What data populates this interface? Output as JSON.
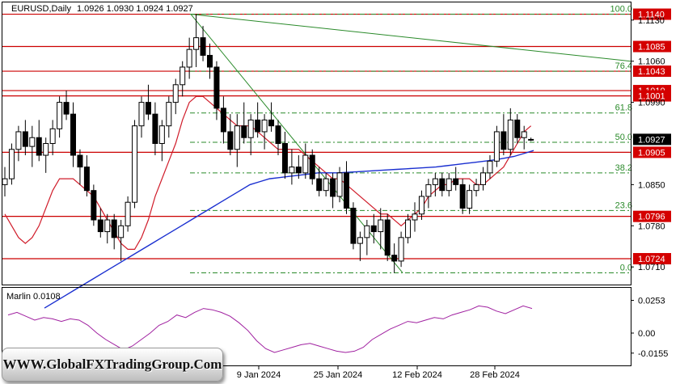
{
  "chart_data": [
    {
      "type": "candlestick",
      "symbol_label": "EURUSD,Daily",
      "ohlc_label": "1.0926 1.0930 1.0924 1.0927",
      "ylim": [
        1.068,
        1.116
      ],
      "y_ticks": [
        "1.1130",
        "1.1060",
        "1.0990",
        "1.0850",
        "1.0780",
        "1.0710"
      ],
      "x_ticks": [
        "9 Jan 2024",
        "25 Jan 2024",
        "12 Feb 2024",
        "28 Feb 2024"
      ],
      "current_price": "1.0927",
      "levels": [
        {
          "label": "1.1140",
          "value": 1.114
        },
        {
          "label": "1.1085",
          "value": 1.1085
        },
        {
          "label": "1.1043",
          "value": 1.1043
        },
        {
          "label": "1.1010",
          "value": 1.101
        },
        {
          "label": "1.1001",
          "value": 1.1001
        },
        {
          "label": "1.0905",
          "value": 1.0905
        },
        {
          "label": "1.0796",
          "value": 1.0796
        },
        {
          "label": "1.0724",
          "value": 1.0724
        }
      ],
      "fibonacci": [
        {
          "label": "100.0",
          "value": 1.114
        },
        {
          "label": "76.4",
          "value": 1.1043
        },
        {
          "label": "61.8",
          "value": 1.0972
        },
        {
          "label": "50.0",
          "value": 1.0922
        },
        {
          "label": "38.2",
          "value": 1.087
        },
        {
          "label": "23.6",
          "value": 1.0806
        },
        {
          "label": "0.0",
          "value": 1.07
        }
      ],
      "candles": [
        [
          1.085,
          1.088,
          1.083,
          1.086
        ],
        [
          1.086,
          1.092,
          1.085,
          1.091
        ],
        [
          1.091,
          1.095,
          1.089,
          1.094
        ],
        [
          1.094,
          1.096,
          1.09,
          1.0915
        ],
        [
          1.0915,
          1.095,
          1.088,
          1.093
        ],
        [
          1.093,
          1.096,
          1.089,
          1.09
        ],
        [
          1.09,
          1.093,
          1.087,
          1.092
        ],
        [
          1.092,
          1.096,
          1.09,
          1.0945
        ],
        [
          1.0945,
          1.1,
          1.093,
          1.099
        ],
        [
          1.099,
          1.101,
          1.096,
          1.097
        ],
        [
          1.097,
          1.099,
          1.088,
          1.09
        ],
        [
          1.09,
          1.091,
          1.085,
          1.088
        ],
        [
          1.088,
          1.09,
          1.083,
          1.084
        ],
        [
          1.084,
          1.085,
          1.078,
          1.079
        ],
        [
          1.079,
          1.081,
          1.076,
          1.077
        ],
        [
          1.077,
          1.08,
          1.075,
          1.079
        ],
        [
          1.079,
          1.08,
          1.074,
          1.076
        ],
        [
          1.076,
          1.079,
          1.072,
          1.078
        ],
        [
          1.078,
          1.083,
          1.077,
          1.082
        ],
        [
          1.082,
          1.096,
          1.081,
          1.095
        ],
        [
          1.095,
          1.1,
          1.093,
          1.099
        ],
        [
          1.099,
          1.102,
          1.096,
          1.097
        ],
        [
          1.097,
          1.099,
          1.09,
          1.092
        ],
        [
          1.092,
          1.096,
          1.089,
          1.095
        ],
        [
          1.095,
          1.1,
          1.093,
          1.099
        ],
        [
          1.099,
          1.103,
          1.097,
          1.102
        ],
        [
          1.102,
          1.106,
          1.1,
          1.105
        ],
        [
          1.105,
          1.11,
          1.103,
          1.108
        ],
        [
          1.108,
          1.114,
          1.105,
          1.11
        ],
        [
          1.11,
          1.112,
          1.106,
          1.107
        ],
        [
          1.107,
          1.109,
          1.103,
          1.105
        ],
        [
          1.105,
          1.106,
          1.096,
          1.098
        ],
        [
          1.098,
          1.1,
          1.092,
          1.094
        ],
        [
          1.094,
          1.097,
          1.09,
          1.091
        ],
        [
          1.091,
          1.097,
          1.088,
          1.095
        ],
        [
          1.095,
          1.099,
          1.092,
          1.093
        ],
        [
          1.093,
          1.097,
          1.09,
          1.096
        ],
        [
          1.096,
          1.099,
          1.093,
          1.094
        ],
        [
          1.094,
          1.097,
          1.091,
          1.096
        ],
        [
          1.096,
          1.099,
          1.094,
          1.095
        ],
        [
          1.095,
          1.096,
          1.09,
          1.092
        ],
        [
          1.092,
          1.094,
          1.086,
          1.087
        ],
        [
          1.087,
          1.091,
          1.085,
          1.088
        ],
        [
          1.088,
          1.09,
          1.086,
          1.087
        ],
        [
          1.087,
          1.092,
          1.086,
          1.09
        ],
        [
          1.09,
          1.091,
          1.085,
          1.086
        ],
        [
          1.086,
          1.088,
          1.083,
          1.084
        ],
        [
          1.084,
          1.087,
          1.083,
          1.086
        ],
        [
          1.086,
          1.087,
          1.081,
          1.083
        ],
        [
          1.083,
          1.088,
          1.082,
          1.087
        ],
        [
          1.087,
          1.089,
          1.08,
          1.081
        ],
        [
          1.081,
          1.082,
          1.074,
          1.075
        ],
        [
          1.075,
          1.077,
          1.072,
          1.076
        ],
        [
          1.076,
          1.079,
          1.073,
          1.078
        ],
        [
          1.078,
          1.08,
          1.075,
          1.077
        ],
        [
          1.077,
          1.081,
          1.074,
          1.079
        ],
        [
          1.079,
          1.08,
          1.072,
          1.073
        ],
        [
          1.073,
          1.075,
          1.07,
          1.072
        ],
        [
          1.072,
          1.077,
          1.071,
          1.076
        ],
        [
          1.076,
          1.08,
          1.075,
          1.079
        ],
        [
          1.079,
          1.082,
          1.077,
          1.08
        ],
        [
          1.08,
          1.084,
          1.079,
          1.083
        ],
        [
          1.083,
          1.086,
          1.081,
          1.085
        ],
        [
          1.085,
          1.087,
          1.083,
          1.086
        ],
        [
          1.086,
          1.087,
          1.083,
          1.084
        ],
        [
          1.084,
          1.087,
          1.083,
          1.086
        ],
        [
          1.086,
          1.088,
          1.084,
          1.085
        ],
        [
          1.085,
          1.086,
          1.08,
          1.081
        ],
        [
          1.081,
          1.085,
          1.08,
          1.084
        ],
        [
          1.084,
          1.086,
          1.083,
          1.085
        ],
        [
          1.085,
          1.088,
          1.084,
          1.087
        ],
        [
          1.087,
          1.09,
          1.086,
          1.089
        ],
        [
          1.089,
          1.095,
          1.088,
          1.094
        ],
        [
          1.094,
          1.097,
          1.09,
          1.091
        ],
        [
          1.091,
          1.098,
          1.09,
          1.096
        ],
        [
          1.096,
          1.097,
          1.092,
          1.093
        ],
        [
          1.093,
          1.095,
          1.091,
          1.094
        ],
        [
          1.0926,
          1.093,
          1.0924,
          1.0927
        ]
      ],
      "ma_red": [
        1.08,
        1.078,
        1.076,
        1.075,
        1.076,
        1.078,
        1.081,
        1.084,
        1.086,
        1.086,
        1.086,
        1.085,
        1.084,
        1.083,
        1.081,
        1.079,
        1.077,
        1.075,
        1.074,
        1.074,
        1.076,
        1.079,
        1.083,
        1.086,
        1.089,
        1.092,
        1.096,
        1.099,
        1.1,
        1.1,
        1.099,
        1.098,
        1.097,
        1.096,
        1.095,
        1.095,
        1.095,
        1.094,
        1.093,
        1.092,
        1.091,
        1.091,
        1.091,
        1.091,
        1.09,
        1.089,
        1.088,
        1.087,
        1.086,
        1.086,
        1.085,
        1.084,
        1.083,
        1.082,
        1.081,
        1.08,
        1.08,
        1.079,
        1.078,
        1.079,
        1.08,
        1.081,
        1.083,
        1.084,
        1.085,
        1.085,
        1.086,
        1.086,
        1.086,
        1.085,
        1.085,
        1.086,
        1.087,
        1.088,
        1.09,
        1.092,
        1.094,
        1.095
      ],
      "ma_blue": [
        1.064,
        1.065,
        1.066,
        1.067,
        1.068,
        1.069,
        1.07,
        1.071,
        1.072,
        1.073,
        1.074,
        1.075,
        1.076,
        1.077,
        1.078,
        1.079,
        1.08,
        1.081,
        1.082,
        1.083,
        1.084,
        1.085,
        1.0855,
        1.086,
        1.0862,
        1.0864,
        1.0866,
        1.0868,
        1.087,
        1.087,
        1.087,
        1.0871,
        1.0872,
        1.0873,
        1.0874,
        1.0875,
        1.0876,
        1.0877,
        1.0878,
        1.0879,
        1.088,
        1.0882,
        1.0884,
        1.0886,
        1.0888,
        1.089,
        1.0892,
        1.0895,
        1.0898,
        1.0903,
        1.0908
      ],
      "green_line_value_labels": [
        "1.1140",
        "1.1060"
      ],
      "indicator": {
        "label": "Marlin 0.0108",
        "y_ticks": [
          "0.0253",
          "0.00",
          "-0.0155"
        ],
        "ylim": [
          -0.025,
          0.035
        ],
        "values": [
          0.014,
          0.016,
          0.013,
          0.01,
          0.012,
          0.011,
          0.009,
          0.011,
          0.01,
          0.006,
          0.0,
          -0.005,
          -0.009,
          -0.013,
          -0.01,
          -0.005,
          0.0,
          0.006,
          0.009,
          0.014,
          0.012,
          0.016,
          0.019,
          0.018,
          0.016,
          0.013,
          0.008,
          0.002,
          -0.006,
          -0.012,
          -0.015,
          -0.013,
          -0.011,
          -0.009,
          -0.008,
          -0.01,
          -0.012,
          -0.014,
          -0.015,
          -0.014,
          -0.011,
          -0.005,
          -0.001,
          0.003,
          0.006,
          0.009,
          0.008,
          0.01,
          0.012,
          0.011,
          0.014,
          0.016,
          0.018,
          0.021,
          0.02,
          0.017,
          0.015,
          0.018,
          0.021,
          0.019
        ]
      }
    }
  ],
  "branding": {
    "watermark": "WWW.GlobalFXTradingGroup.Com"
  }
}
